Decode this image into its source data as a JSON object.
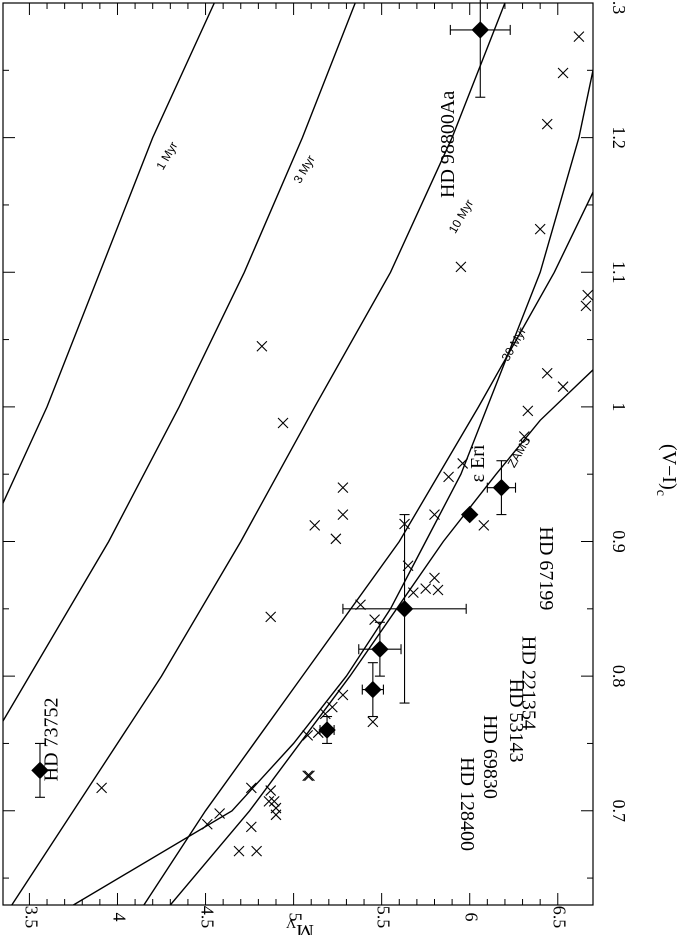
{
  "chart_data": {
    "type": "scatter",
    "xlabel": "(V−I)",
    "xlabel_sub": "c",
    "ylabel": "M",
    "ylabel_sub": "V",
    "xlim": [
      0.63,
      1.3
    ],
    "ylim": [
      3.35,
      6.7
    ],
    "x_ticks": [
      0.7,
      0.8,
      0.9,
      1.0,
      1.1,
      1.2,
      1.3
    ],
    "x_tick_labels": [
      "0.7",
      "0.8",
      "0.9",
      "1",
      "1.1",
      "1.2",
      "1.3"
    ],
    "y_ticks": [
      3.5,
      4.0,
      4.5,
      5.0,
      5.5,
      6.0,
      6.5
    ],
    "y_tick_labels": [
      "3.5",
      "4",
      "4.5",
      "5",
      "5.5",
      "6",
      "6.5"
    ],
    "y_inverted": true,
    "grid": false,
    "isochrones": [
      {
        "label": "1 Myr",
        "points": [
          [
            0.63,
            2.05
          ],
          [
            0.7,
            2.4
          ],
          [
            0.8,
            2.85
          ],
          [
            0.9,
            3.25
          ],
          [
            1.0,
            3.6
          ],
          [
            1.1,
            3.9
          ],
          [
            1.2,
            4.2
          ],
          [
            1.3,
            4.55
          ]
        ],
        "label_pos": [
          1.185,
          4.3
        ]
      },
      {
        "label": "3 Myr",
        "points": [
          [
            0.63,
            2.75
          ],
          [
            0.7,
            3.05
          ],
          [
            0.8,
            3.5
          ],
          [
            0.9,
            3.95
          ],
          [
            1.0,
            4.35
          ],
          [
            1.1,
            4.72
          ],
          [
            1.2,
            5.05
          ],
          [
            1.3,
            5.35
          ]
        ],
        "label_pos": [
          1.175,
          5.08
        ]
      },
      {
        "label": "10 Myr",
        "points": [
          [
            0.63,
            3.4
          ],
          [
            0.7,
            3.75
          ],
          [
            0.8,
            4.25
          ],
          [
            0.9,
            4.7
          ],
          [
            1.0,
            5.12
          ],
          [
            1.1,
            5.55
          ],
          [
            1.2,
            5.9
          ],
          [
            1.3,
            6.2
          ]
        ],
        "label_pos": [
          1.14,
          5.97
        ]
      },
      {
        "label": "30 Myr",
        "points": [
          [
            0.63,
            4.15
          ],
          [
            0.7,
            4.5
          ],
          [
            0.8,
            5.05
          ],
          [
            0.9,
            5.6
          ],
          [
            1.0,
            6.05
          ],
          [
            1.1,
            6.48
          ],
          [
            1.2,
            6.85
          ]
        ],
        "label_pos": [
          1.045,
          6.27
        ]
      },
      {
        "label": "ZAMS",
        "points": [
          [
            0.63,
            4.3
          ],
          [
            0.7,
            4.75
          ],
          [
            0.8,
            5.32
          ],
          [
            0.9,
            5.85
          ],
          [
            0.95,
            6.15
          ],
          [
            0.99,
            6.4
          ],
          [
            1.03,
            6.72
          ]
        ],
        "label_pos": [
          0.965,
          6.3
        ]
      },
      {
        "label": "",
        "points": [
          [
            0.63,
            3.75
          ],
          [
            0.7,
            4.65
          ],
          [
            0.75,
            5.0
          ],
          [
            0.8,
            5.3
          ],
          [
            0.85,
            5.55
          ],
          [
            0.9,
            5.75
          ],
          [
            0.95,
            5.95
          ],
          [
            1.0,
            6.1
          ],
          [
            1.1,
            6.4
          ],
          [
            1.2,
            6.62
          ],
          [
            1.3,
            6.78
          ]
        ]
      }
    ],
    "crosses": [
      [
        0.717,
        3.91
      ],
      [
        0.69,
        4.51
      ],
      [
        0.698,
        4.58
      ],
      [
        0.67,
        4.69
      ],
      [
        0.67,
        4.79
      ],
      [
        0.688,
        4.76
      ],
      [
        0.717,
        4.76
      ],
      [
        0.715,
        4.87
      ],
      [
        0.707,
        4.86
      ],
      [
        0.707,
        4.89
      ],
      [
        0.702,
        4.9
      ],
      [
        0.697,
        4.9
      ],
      [
        0.844,
        4.87
      ],
      [
        0.726,
        5.08
      ],
      [
        0.726,
        5.09
      ],
      [
        0.756,
        5.08
      ],
      [
        0.758,
        5.14
      ],
      [
        0.772,
        5.18
      ],
      [
        0.777,
        5.22
      ],
      [
        0.766,
        5.45
      ],
      [
        0.786,
        5.28
      ],
      [
        0.853,
        5.38
      ],
      [
        0.842,
        5.46
      ],
      [
        0.912,
        5.12
      ],
      [
        0.902,
        5.24
      ],
      [
        0.92,
        5.28
      ],
      [
        0.94,
        5.28
      ],
      [
        0.988,
        4.94
      ],
      [
        1.045,
        4.82
      ],
      [
        0.913,
        5.63
      ],
      [
        0.882,
        5.65
      ],
      [
        0.862,
        5.68
      ],
      [
        0.865,
        5.75
      ],
      [
        0.873,
        5.8
      ],
      [
        0.864,
        5.82
      ],
      [
        0.92,
        5.8
      ],
      [
        0.948,
        5.88
      ],
      [
        0.958,
        5.96
      ],
      [
        0.912,
        6.08
      ],
      [
        0.978,
        6.31
      ],
      [
        0.997,
        6.33
      ],
      [
        1.025,
        6.44
      ],
      [
        1.015,
        6.53
      ],
      [
        1.075,
        6.66
      ],
      [
        1.083,
        6.67
      ],
      [
        1.104,
        5.95
      ],
      [
        1.132,
        6.4
      ],
      [
        1.21,
        6.44
      ],
      [
        1.248,
        6.53
      ],
      [
        1.275,
        6.62
      ]
    ],
    "stars": [
      {
        "name": "HD 73752",
        "x": 0.73,
        "y": 3.56,
        "xerr": 0.02,
        "yerr": 0.0
      },
      {
        "name": "HD 128400",
        "x": 0.76,
        "y": 5.19,
        "xerr": 0.01,
        "yerr": 0.04
      },
      {
        "name": "HD 69830",
        "x": 0.79,
        "y": 5.45,
        "xerr": 0.02,
        "yerr": 0.06
      },
      {
        "name": "HD 53143",
        "x": 0.82,
        "y": 5.49,
        "xerr": 0.02,
        "yerr": 0.12
      },
      {
        "name": "HD 221354",
        "x": 0.85,
        "y": 5.63,
        "xerr": 0.07,
        "yerr": 0.35
      },
      {
        "name": "ε  Eri",
        "x": 0.92,
        "y": 6.0,
        "xerr": 0.0,
        "yerr": 0.0
      },
      {
        "name": "HD 67199",
        "x": 0.94,
        "y": 6.18,
        "xerr": 0.02,
        "yerr": 0.08
      },
      {
        "name": "HD 98800Aa",
        "x": 1.28,
        "y": 6.06,
        "xerr": 0.05,
        "yerr": 0.17
      }
    ],
    "star_labels": [
      {
        "name": "HD 73752",
        "pos": [
          0.753,
          3.66
        ],
        "angle": -90
      },
      {
        "name": "HD 128400",
        "pos": [
          0.705,
          5.95
        ],
        "angle": 90
      },
      {
        "name": "HD 69830",
        "pos": [
          0.74,
          6.08
        ],
        "angle": 90
      },
      {
        "name": "HD 53143",
        "pos": [
          0.767,
          6.23
        ],
        "angle": 90
      },
      {
        "name": "HD 221354",
        "pos": [
          0.795,
          6.3
        ],
        "angle": 90
      },
      {
        "name": "HD 67199",
        "pos": [
          0.88,
          6.4
        ],
        "angle": 90
      },
      {
        "name": "ε  Eri",
        "pos": [
          0.958,
          6.08
        ],
        "angle": -90
      },
      {
        "name": "HD 98800Aa",
        "pos": [
          1.195,
          5.91
        ],
        "angle": -90
      }
    ]
  }
}
